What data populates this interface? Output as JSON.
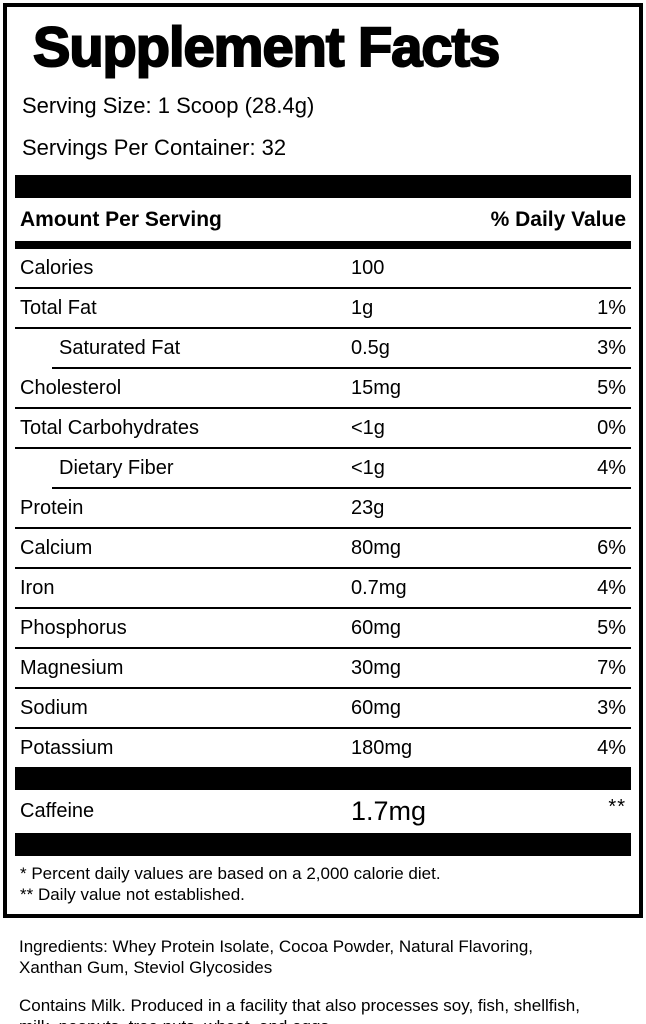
{
  "panel": {
    "title": "Supplement Facts",
    "serving_size": "Serving Size: 1 Scoop (28.4g)",
    "servings_per_container": "Servings Per Container: 32",
    "column_headers": {
      "amount": "Amount Per Serving",
      "daily_value": "% Daily Value"
    },
    "rows": [
      {
        "label": "Calories",
        "amount": "100",
        "dv": "",
        "indent": false
      },
      {
        "label": "Total Fat",
        "amount": "1g",
        "dv": "1%",
        "indent": false
      },
      {
        "label": "Saturated Fat",
        "amount": "0.5g",
        "dv": "3%",
        "indent": true
      },
      {
        "label": "Cholesterol",
        "amount": "15mg",
        "dv": "5%",
        "indent": false
      },
      {
        "label": "Total Carbohydrates",
        "amount": "<1g",
        "dv": "0%",
        "indent": false
      },
      {
        "label": "Dietary Fiber",
        "amount": "<1g",
        "dv": "4%",
        "indent": true
      },
      {
        "label": "Protein",
        "amount": "23g",
        "dv": "",
        "indent": false
      },
      {
        "label": "Calcium",
        "amount": "80mg",
        "dv": "6%",
        "indent": false
      },
      {
        "label": "Iron",
        "amount": "0.7mg",
        "dv": "4%",
        "indent": false
      },
      {
        "label": "Phosphorus",
        "amount": "60mg",
        "dv": "5%",
        "indent": false
      },
      {
        "label": "Magnesium",
        "amount": "30mg",
        "dv": "7%",
        "indent": false
      },
      {
        "label": "Sodium",
        "amount": "60mg",
        "dv": "3%",
        "indent": false
      },
      {
        "label": "Potassium",
        "amount": "180mg",
        "dv": "4%",
        "indent": false
      }
    ],
    "caffeine_row": {
      "label": "Caffeine",
      "amount": "1.7mg",
      "dv": "**"
    },
    "footnote_lines": [
      "* Percent daily values are based on a 2,000 calorie diet.",
      "** Daily value not established."
    ]
  },
  "ingredients_lines": [
    "Ingredients: Whey Protein Isolate, Cocoa Powder, Natural Flavoring,",
    "Xanthan Gum, Steviol Glycosides"
  ],
  "allergen_lines": [
    "Contains Milk. Produced in a facility that also processes soy, fish, shellfish,",
    "milk, peanuts, tree nuts, wheat, and eggs."
  ],
  "colors": {
    "ink": "#000000",
    "background": "#ffffff"
  }
}
